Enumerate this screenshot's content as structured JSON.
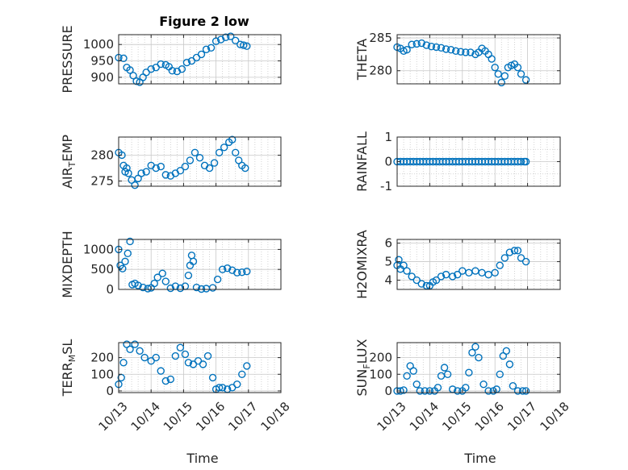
{
  "figure": {
    "title": "Figure 2 low",
    "xlabel": "Time"
  },
  "colors": {
    "marker": "#0072BD",
    "axis": "#262626",
    "grid": "#c8c8c8"
  },
  "chart_data": [
    {
      "type": "scatter",
      "ylabel_parts": [
        "PRESSURE"
      ],
      "ylim": [
        880,
        1030
      ],
      "yticks": [
        900,
        950,
        1000
      ],
      "yminor": [],
      "xlim": [
        0,
        5
      ],
      "xticks": [
        "10/13",
        "10/14",
        "10/15",
        "10/16",
        "10/17",
        "10/18"
      ],
      "show_xticklabels": false,
      "title": "Figure 2 low",
      "series": [
        {
          "x": [
            0,
            0.15,
            0.25,
            0.35,
            0.45,
            0.55,
            0.65,
            0.75,
            0.85,
            1.0,
            1.15,
            1.3,
            1.45,
            1.55,
            1.65,
            1.8,
            1.95,
            2.1,
            2.25,
            2.4,
            2.55,
            2.7,
            2.85,
            3.0,
            3.15,
            3.3,
            3.45,
            3.6,
            3.75,
            3.85,
            3.95
          ],
          "y": [
            960,
            958,
            930,
            922,
            905,
            888,
            885,
            900,
            915,
            925,
            930,
            940,
            938,
            932,
            920,
            918,
            925,
            945,
            950,
            960,
            970,
            985,
            990,
            1010,
            1015,
            1022,
            1025,
            1012,
            1000,
            998,
            995
          ]
        }
      ]
    },
    {
      "type": "scatter",
      "ylabel_parts": [
        "THETA"
      ],
      "ylim": [
        278,
        285.5
      ],
      "yticks": [
        280,
        285
      ],
      "yminor": [],
      "xlim": [
        0,
        5
      ],
      "xticks": [
        "10/13",
        "10/14",
        "10/15",
        "10/16",
        "10/17",
        "10/18"
      ],
      "show_xticklabels": false,
      "series": [
        {
          "x": [
            0,
            0.1,
            0.2,
            0.3,
            0.45,
            0.6,
            0.75,
            0.9,
            1.05,
            1.2,
            1.35,
            1.5,
            1.65,
            1.8,
            1.95,
            2.1,
            2.25,
            2.4,
            2.5,
            2.6,
            2.7,
            2.8,
            2.9,
            3.0,
            3.1,
            3.2,
            3.3,
            3.4,
            3.5,
            3.6,
            3.7,
            3.8,
            3.95
          ],
          "y": [
            283.6,
            283.4,
            283.0,
            283.2,
            284.0,
            284.1,
            284.2,
            283.9,
            283.7,
            283.6,
            283.5,
            283.3,
            283.2,
            283.0,
            282.9,
            282.8,
            282.8,
            282.5,
            282.8,
            283.4,
            283.0,
            282.5,
            281.8,
            280.5,
            279.5,
            278.2,
            279.2,
            280.5,
            280.8,
            281.0,
            280.5,
            279.5,
            278.6
          ]
        }
      ]
    },
    {
      "type": "scatter",
      "ylabel_parts": [
        "AIR",
        "T",
        "EMP"
      ],
      "ylim": [
        274,
        283.5
      ],
      "yticks": [
        275,
        280
      ],
      "yminor": [],
      "xlim": [
        0,
        5
      ],
      "xticks": [
        "10/13",
        "10/14",
        "10/15",
        "10/16",
        "10/17",
        "10/18"
      ],
      "show_xticklabels": false,
      "series": [
        {
          "x": [
            0,
            0.1,
            0.15,
            0.2,
            0.25,
            0.3,
            0.4,
            0.5,
            0.6,
            0.7,
            0.85,
            1.0,
            1.15,
            1.3,
            1.45,
            1.6,
            1.75,
            1.9,
            2.05,
            2.2,
            2.35,
            2.5,
            2.65,
            2.8,
            2.95,
            3.1,
            3.25,
            3.4,
            3.5,
            3.6,
            3.7,
            3.8,
            3.9
          ],
          "y": [
            280.5,
            280.0,
            278.0,
            276.8,
            277.5,
            276.5,
            275.2,
            274.2,
            275.5,
            276.5,
            276.8,
            278.0,
            277.5,
            277.8,
            276.2,
            276.0,
            276.5,
            277.0,
            277.8,
            279.0,
            280.5,
            279.5,
            278.0,
            277.5,
            278.5,
            280.5,
            281.5,
            282.5,
            283.0,
            280.5,
            279.0,
            278.0,
            277.5
          ]
        }
      ]
    },
    {
      "type": "scatter",
      "ylabel_parts": [
        "RAINFALL"
      ],
      "ylim": [
        -1,
        1
      ],
      "yticks": [
        -1,
        0,
        1
      ],
      "yminor": [
        -0.5,
        0.5
      ],
      "xlim": [
        0,
        5
      ],
      "xticks": [
        "10/13",
        "10/14",
        "10/15",
        "10/16",
        "10/17",
        "10/18"
      ],
      "show_xticklabels": false,
      "series": [
        {
          "x": [
            0,
            0.1,
            0.2,
            0.3,
            0.4,
            0.5,
            0.6,
            0.7,
            0.8,
            0.9,
            1.0,
            1.1,
            1.2,
            1.3,
            1.4,
            1.5,
            1.6,
            1.7,
            1.8,
            1.9,
            2.0,
            2.1,
            2.2,
            2.3,
            2.4,
            2.5,
            2.6,
            2.7,
            2.8,
            2.9,
            3.0,
            3.1,
            3.2,
            3.3,
            3.4,
            3.5,
            3.6,
            3.7,
            3.8,
            3.9,
            3.95
          ],
          "y": [
            0,
            0,
            0,
            0,
            0,
            0,
            0,
            0,
            0,
            0,
            0,
            0,
            0,
            0,
            0,
            0,
            0,
            0,
            0,
            0,
            0,
            0,
            0,
            0,
            0,
            0,
            0,
            0,
            0,
            0,
            0,
            0,
            0,
            0,
            0,
            0,
            0,
            0,
            0,
            0,
            0
          ]
        }
      ]
    },
    {
      "type": "scatter",
      "ylabel_parts": [
        "MIXDEPTH"
      ],
      "ylim": [
        0,
        1250
      ],
      "yticks": [
        0,
        500,
        1000
      ],
      "yminor": [],
      "xlim": [
        0,
        5
      ],
      "xticks": [
        "10/13",
        "10/14",
        "10/15",
        "10/16",
        "10/17",
        "10/18"
      ],
      "show_xticklabels": false,
      "series": [
        {
          "x": [
            0,
            0.05,
            0.12,
            0.2,
            0.28,
            0.35,
            0.42,
            0.5,
            0.6,
            0.75,
            0.9,
            1.0,
            1.1,
            1.2,
            1.35,
            1.45,
            1.6,
            1.75,
            1.9,
            2.05,
            2.15,
            2.2,
            2.25,
            2.3,
            2.4,
            2.55,
            2.7,
            2.9,
            3.05,
            3.2,
            3.35,
            3.5,
            3.65,
            3.8,
            3.95
          ],
          "y": [
            1000,
            600,
            520,
            700,
            900,
            1200,
            120,
            150,
            100,
            50,
            20,
            40,
            150,
            300,
            400,
            200,
            30,
            80,
            30,
            80,
            350,
            600,
            850,
            700,
            50,
            10,
            20,
            40,
            250,
            500,
            530,
            480,
            420,
            430,
            450
          ]
        }
      ]
    },
    {
      "type": "scatter",
      "ylabel_parts": [
        "H2OMIXRA"
      ],
      "ylim": [
        3.5,
        6.2
      ],
      "yticks": [
        4,
        5,
        6
      ],
      "yminor": [],
      "xlim": [
        0,
        5
      ],
      "xticks": [
        "10/13",
        "10/14",
        "10/15",
        "10/16",
        "10/17",
        "10/18"
      ],
      "show_xticklabels": false,
      "series": [
        {
          "x": [
            0,
            0.05,
            0.1,
            0.2,
            0.3,
            0.45,
            0.6,
            0.75,
            0.9,
            1.0,
            1.1,
            1.2,
            1.35,
            1.5,
            1.7,
            1.85,
            2.0,
            2.2,
            2.4,
            2.6,
            2.8,
            3.0,
            3.15,
            3.3,
            3.45,
            3.6,
            3.7,
            3.8,
            3.95
          ],
          "y": [
            4.8,
            5.1,
            4.6,
            4.8,
            4.5,
            4.2,
            4.0,
            3.8,
            3.7,
            3.7,
            3.9,
            4.0,
            4.2,
            4.3,
            4.2,
            4.3,
            4.5,
            4.4,
            4.5,
            4.4,
            4.3,
            4.4,
            4.8,
            5.2,
            5.5,
            5.6,
            5.6,
            5.2,
            5.0
          ]
        }
      ]
    },
    {
      "type": "scatter",
      "ylabel_parts": [
        "TERR",
        "M",
        "SL"
      ],
      "ylim": [
        -10,
        290
      ],
      "yticks": [
        0,
        100,
        200
      ],
      "yminor": [],
      "xlim": [
        0,
        5
      ],
      "xticks": [
        "10/13",
        "10/14",
        "10/15",
        "10/16",
        "10/17",
        "10/18"
      ],
      "show_xticklabels": true,
      "series": [
        {
          "x": [
            0,
            0.08,
            0.15,
            0.25,
            0.35,
            0.5,
            0.65,
            0.8,
            1.0,
            1.15,
            1.3,
            1.45,
            1.6,
            1.75,
            1.9,
            2.05,
            2.15,
            2.3,
            2.45,
            2.6,
            2.75,
            2.9,
            3.0,
            3.1,
            3.2,
            3.35,
            3.5,
            3.65,
            3.8,
            3.95
          ],
          "y": [
            40,
            80,
            170,
            280,
            250,
            280,
            240,
            200,
            180,
            200,
            120,
            60,
            70,
            210,
            260,
            220,
            170,
            160,
            180,
            160,
            210,
            80,
            10,
            20,
            20,
            10,
            20,
            40,
            100,
            150
          ]
        }
      ]
    },
    {
      "type": "scatter",
      "ylabel_parts": [
        "SUN",
        "F",
        "LUX"
      ],
      "ylim": [
        -10,
        290
      ],
      "yticks": [
        0,
        100,
        200
      ],
      "yminor": [],
      "xlim": [
        0,
        5
      ],
      "xticks": [
        "10/13",
        "10/14",
        "10/15",
        "10/16",
        "10/17",
        "10/18"
      ],
      "show_xticklabels": true,
      "series": [
        {
          "x": [
            0,
            0.1,
            0.2,
            0.3,
            0.4,
            0.5,
            0.6,
            0.7,
            0.85,
            1.0,
            1.15,
            1.25,
            1.35,
            1.45,
            1.55,
            1.7,
            1.85,
            2.0,
            2.1,
            2.2,
            2.3,
            2.4,
            2.5,
            2.65,
            2.8,
            2.95,
            3.05,
            3.15,
            3.25,
            3.35,
            3.45,
            3.55,
            3.7,
            3.85,
            3.95
          ],
          "y": [
            0,
            0,
            5,
            90,
            150,
            120,
            40,
            0,
            0,
            0,
            0,
            20,
            90,
            140,
            100,
            10,
            0,
            0,
            20,
            110,
            230,
            265,
            200,
            40,
            0,
            0,
            10,
            100,
            210,
            240,
            160,
            30,
            0,
            0,
            0
          ]
        }
      ]
    }
  ]
}
